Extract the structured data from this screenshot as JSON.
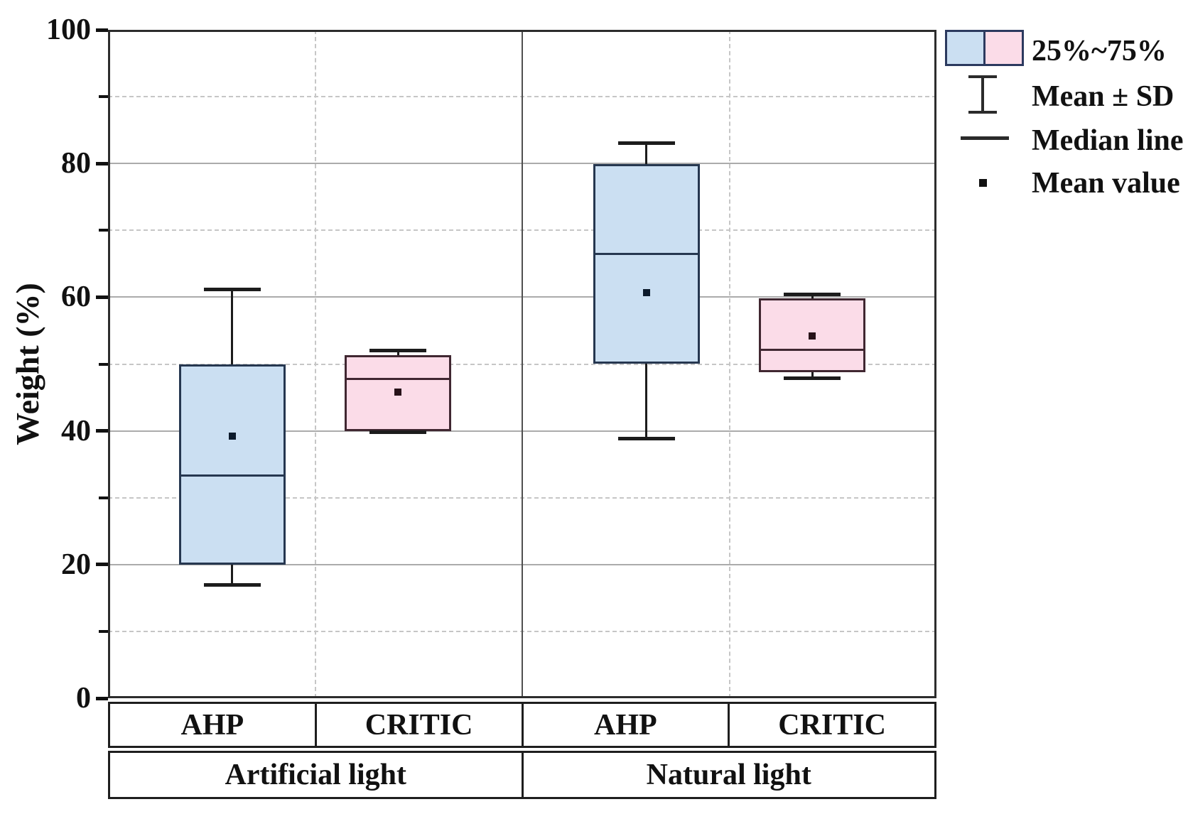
{
  "legend": {
    "items": [
      {
        "icon": "iqr-box-swatches",
        "label": "25%~75%"
      },
      {
        "icon": "error-bar",
        "label": "Mean ± SD"
      },
      {
        "icon": "median-line",
        "label": "Median line"
      },
      {
        "icon": "mean-square",
        "label": "Mean value"
      }
    ]
  },
  "colors": {
    "blue_fill": "#cbdff2",
    "blue_border": "#263750",
    "blue_marker": "#0c1a2c",
    "pink_fill": "#fbdce8",
    "pink_border": "#402731",
    "pink_marker": "#271219",
    "whisker": "#1c1c1c",
    "grid_solid": "#ababab",
    "grid_dashed": "#c6c6c6",
    "divider": "#4f4f4f",
    "frame": "#2d2d2d",
    "table_border": "#1e1e1e",
    "legend_swatch_border": "#2c3a5f",
    "text": "#111111"
  },
  "chart_data": {
    "type": "boxplot",
    "title": "",
    "xlabel": "",
    "ylabel": "Weight (%)",
    "ylim": [
      0,
      100
    ],
    "y_major_ticks": [
      0,
      20,
      40,
      60,
      80,
      100
    ],
    "y_minor_ticks": [
      10,
      30,
      50,
      70,
      90
    ],
    "grid": true,
    "legend_position": "outside-top-right",
    "whisker_meaning": "Mean ± SD",
    "groups": [
      {
        "label": "Artificial light",
        "boxes": [
          {
            "label": "AHP",
            "color_key": "blue",
            "q1": 20.0,
            "median": 33.3,
            "q3": 50.0,
            "mean": 39.2,
            "whisker_low": 17.0,
            "whisker_high": 61.2
          },
          {
            "label": "CRITIC",
            "color_key": "pink",
            "q1": 40.0,
            "median": 47.8,
            "q3": 51.3,
            "mean": 45.8,
            "whisker_low": 39.8,
            "whisker_high": 52.0
          }
        ]
      },
      {
        "label": "Natural light",
        "boxes": [
          {
            "label": "AHP",
            "color_key": "blue",
            "q1": 50.0,
            "median": 66.5,
            "q3": 79.9,
            "mean": 60.7,
            "whisker_low": 38.8,
            "whisker_high": 83.0
          },
          {
            "label": "CRITIC",
            "color_key": "pink",
            "q1": 48.8,
            "median": 52.1,
            "q3": 59.8,
            "mean": 54.2,
            "whisker_low": 47.9,
            "whisker_high": 60.4
          }
        ]
      }
    ]
  }
}
